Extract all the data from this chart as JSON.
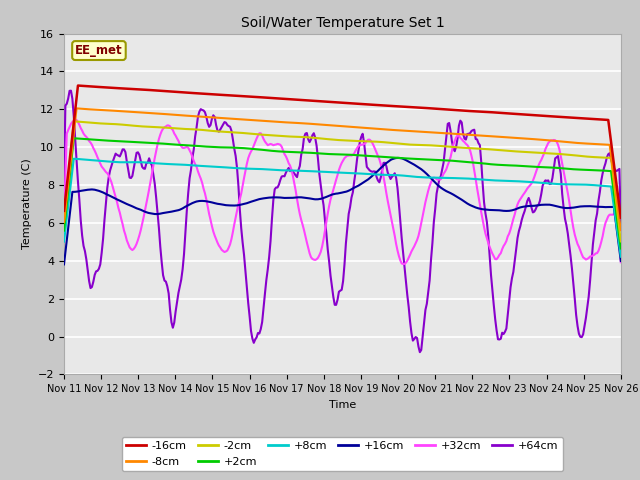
{
  "title": "Soil/Water Temperature Set 1",
  "xlabel": "Time",
  "ylabel": "Temperature (C)",
  "xlim": [
    0,
    15
  ],
  "ylim": [
    -2,
    16
  ],
  "yticks": [
    -2,
    0,
    2,
    4,
    6,
    8,
    10,
    12,
    14,
    16
  ],
  "xtick_labels": [
    "Nov 11",
    "Nov 12",
    "Nov 13",
    "Nov 14",
    "Nov 15",
    "Nov 16",
    "Nov 17",
    "Nov 18",
    "Nov 19",
    "Nov 20",
    "Nov 21",
    "Nov 22",
    "Nov 23",
    "Nov 24",
    "Nov 25",
    "Nov 26"
  ],
  "annotation_text": "EE_met",
  "annotation_color": "#800000",
  "annotation_bg": "#ffffcc",
  "annotation_border": "#999900",
  "fig_bg": "#c8c8c8",
  "plot_bg": "#e8e8e8",
  "grid_color": "#ffffff",
  "series": {
    "-16cm": {
      "color": "#cc0000",
      "lw": 1.8
    },
    "-8cm": {
      "color": "#ff8800",
      "lw": 1.5
    },
    "-2cm": {
      "color": "#cccc00",
      "lw": 1.5
    },
    "+2cm": {
      "color": "#00cc00",
      "lw": 1.5
    },
    "+8cm": {
      "color": "#00cccc",
      "lw": 1.5
    },
    "+16cm": {
      "color": "#000099",
      "lw": 1.5
    },
    "+32cm": {
      "color": "#ff44ff",
      "lw": 1.5
    },
    "+64cm": {
      "color": "#8800cc",
      "lw": 1.5
    }
  }
}
